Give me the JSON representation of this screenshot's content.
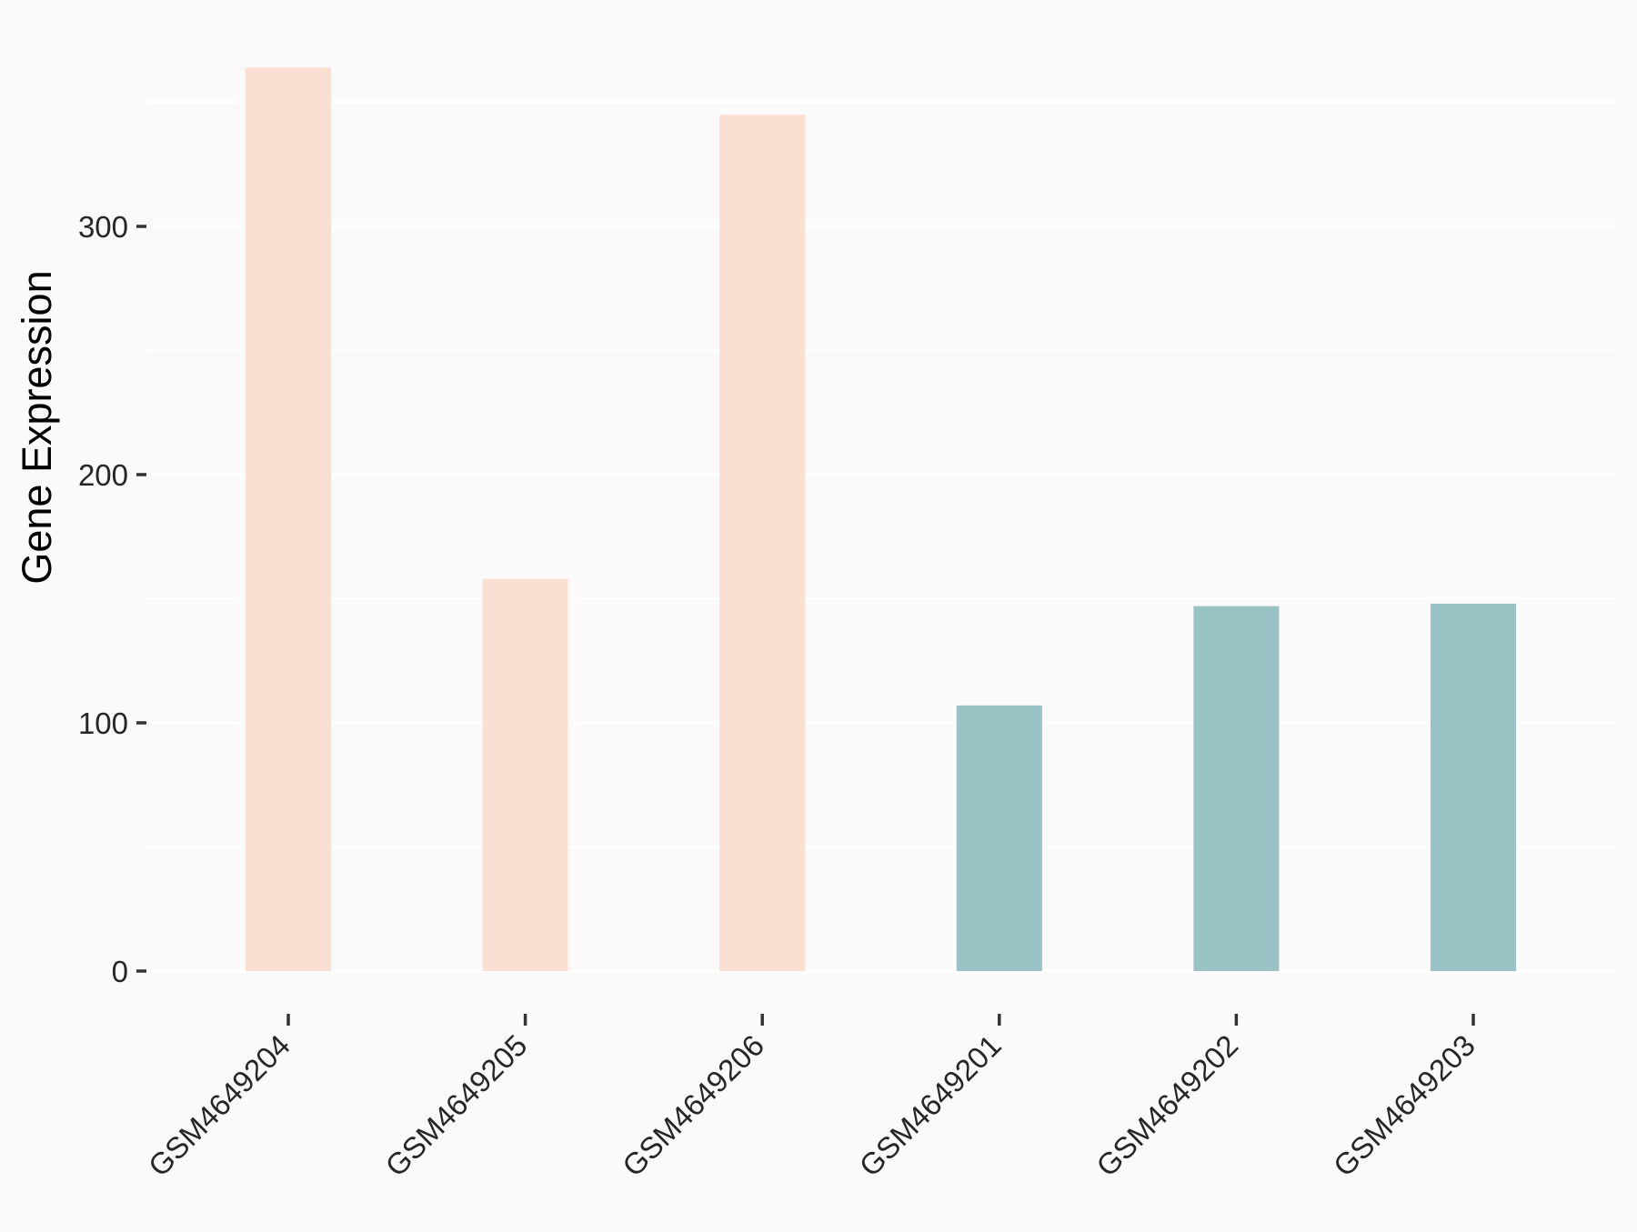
{
  "chart_data": {
    "type": "bar",
    "title": "",
    "ylabel": "Gene Expression",
    "xlabel": "",
    "categories": [
      "GSM4649204",
      "GSM4649205",
      "GSM4649206",
      "GSM4649201",
      "GSM4649202",
      "GSM4649203"
    ],
    "values": [
      364,
      158,
      345,
      107,
      147,
      148
    ],
    "groups": [
      "group1",
      "group1",
      "group1",
      "group2",
      "group2",
      "group2"
    ],
    "group_colors": {
      "group1": "#FCDFD3",
      "group2": "#99C2C4"
    },
    "ylim": [
      0,
      390
    ],
    "yticks": [
      0,
      100,
      200,
      300
    ],
    "ytick_labels": [
      "0",
      "100",
      "200",
      "300"
    ],
    "yticks_minor": [
      50,
      150,
      250,
      350
    ],
    "x_label_rotation_deg": 45,
    "legend": "none",
    "grid": "on",
    "background": "#FAFAFA",
    "gridline_color": "#FFFFFF",
    "tick_color": "#333333",
    "text_color": "#262626"
  }
}
